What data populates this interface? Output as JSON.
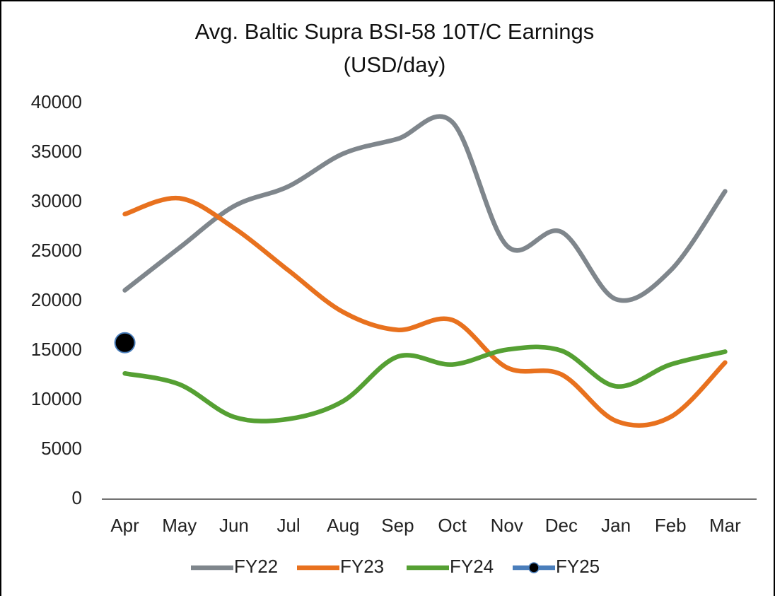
{
  "chart_data": {
    "type": "line",
    "title": "Avg. Baltic Supra BSI-58 10T/C Earnings",
    "subtitle": "(USD/day)",
    "categories": [
      "Apr",
      "May",
      "Jun",
      "Jul",
      "Aug",
      "Sep",
      "Oct",
      "Nov",
      "Dec",
      "Jan",
      "Feb",
      "Mar"
    ],
    "series": [
      {
        "name": "FY22",
        "color": "#7f868c",
        "values": [
          21100,
          25400,
          29600,
          31600,
          34900,
          36400,
          38100,
          25600,
          27000,
          20200,
          23100,
          31100
        ]
      },
      {
        "name": "FY23",
        "color": "#e8711e",
        "values": [
          28800,
          30400,
          27400,
          23100,
          18900,
          17100,
          18100,
          13300,
          12600,
          7900,
          8300,
          13800
        ]
      },
      {
        "name": "FY24",
        "color": "#55a033",
        "values": [
          12700,
          11600,
          8300,
          8100,
          9900,
          14400,
          13600,
          15100,
          15000,
          11400,
          13600,
          14900
        ]
      },
      {
        "name": "FY25",
        "color": "#4a7ebb",
        "marker_color": "#000000",
        "values": [
          15800,
          null,
          null,
          null,
          null,
          null,
          null,
          null,
          null,
          null,
          null,
          null
        ]
      }
    ],
    "ylim": [
      0,
      40000
    ],
    "yticks": [
      0,
      5000,
      10000,
      15000,
      20000,
      25000,
      30000,
      35000,
      40000
    ],
    "grid": false,
    "smooth": true,
    "legend": "bottom"
  }
}
